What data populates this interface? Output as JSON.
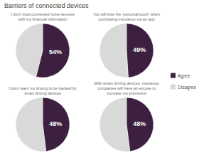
{
  "title": "Barriers of connected devices",
  "chart_data": [
    {
      "type": "pie",
      "title": "I don't trust connected home devices\nwith my financial information",
      "categories": [
        "Agree",
        "Disagree"
      ],
      "values": [
        54,
        46
      ],
      "value_labels": [
        "54%",
        null
      ],
      "colors": [
        "#3d2040",
        "#d9d9d9"
      ],
      "data_labels": true,
      "legend": "right"
    },
    {
      "type": "pie",
      "title": "You will lose the ‘personal touch’ when\npurchasing insurance via an app",
      "categories": [
        "Agree",
        "Disagree"
      ],
      "values": [
        49,
        51
      ],
      "value_labels": [
        "49%",
        null
      ],
      "colors": [
        "#3d2040",
        "#d9d9d9"
      ],
      "data_labels": true
    },
    {
      "type": "pie",
      "title": "I don't want my driving to be tracked by\nsmart driving devices",
      "categories": [
        "Agree",
        "Disagree"
      ],
      "values": [
        48,
        52
      ],
      "value_labels": [
        "48%",
        null
      ],
      "colors": [
        "#3d2040",
        "#d9d9d9"
      ],
      "data_labels": true
    },
    {
      "type": "pie",
      "title": "With smart driving devices, insurance\ncompanies will have an excuse to\nincrease my premiums",
      "categories": [
        "Agree",
        "Disagree"
      ],
      "values": [
        48,
        52
      ],
      "value_labels": [
        "48%",
        null
      ],
      "colors": [
        "#3d2040",
        "#d9d9d9"
      ],
      "data_labels": true
    }
  ]
}
